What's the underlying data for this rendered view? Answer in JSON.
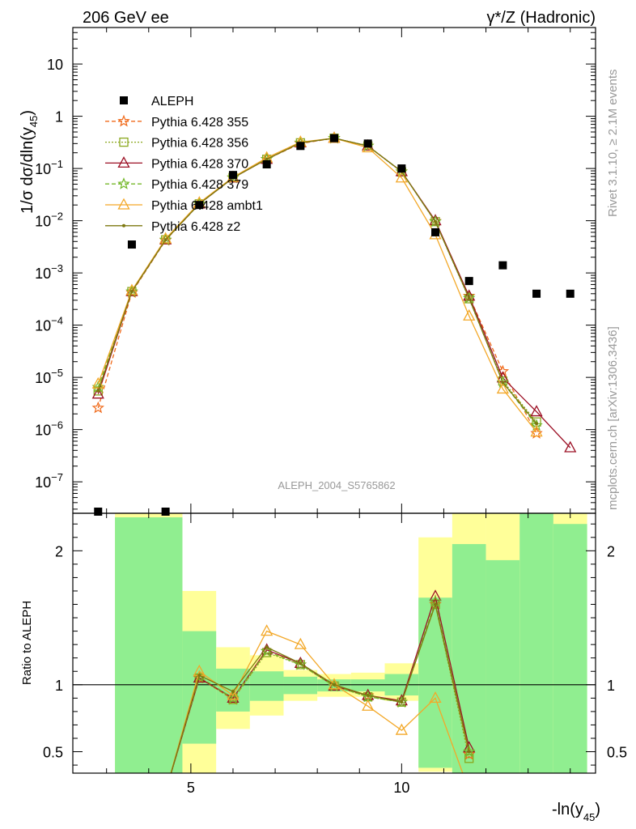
{
  "header": {
    "left_title": "206 GeV ee",
    "right_title": "γ*/Z (Hadronic)"
  },
  "side_labels": {
    "rivet": "Rivet 3.1.10, ≥ 2.1M events",
    "mcplots": "mcplots.cern.ch [arXiv:1306.3436]"
  },
  "watermark": "ALEPH_2004_S5765862",
  "colors": {
    "ALEPH": "#000000",
    "p355": "#f06a1a",
    "p356": "#8aa81e",
    "p370": "#9c1025",
    "p379": "#74b82a",
    "ambt1": "#f3a828",
    "z2": "#7d7810",
    "band_inner": "#90ee90",
    "band_outer": "#ffff99"
  },
  "chart_data": [
    {
      "type": "line",
      "panel": "main",
      "ylabel": "1/σ dσ/dln(y45)",
      "yscale": "log",
      "ylim": [
        2.5e-08,
        50
      ],
      "xlim": [
        2.2,
        14.6
      ],
      "y_ticks": [
        "10^-7",
        "10^-6",
        "10^-5",
        "10^-4",
        "10^-3",
        "10^-2",
        "10^-1",
        "1",
        "10"
      ],
      "legend_position": "top-left",
      "data_marker": {
        "name": "ALEPH",
        "x": [
          2.8,
          3.6,
          4.4,
          5.2,
          6.0,
          6.8,
          7.6,
          8.4,
          9.2,
          10.0,
          10.8,
          11.6,
          12.4,
          13.2,
          14.0
        ],
        "y": [
          2.5e-08,
          0.0035,
          2.5e-08,
          0.02,
          0.075,
          0.12,
          0.27,
          0.38,
          0.3,
          0.1,
          0.006,
          0.0007,
          0.0014,
          0.0004,
          0.0004
        ]
      },
      "x": [
        2.8,
        3.6,
        4.4,
        5.2,
        6.0,
        6.8,
        7.6,
        8.4,
        9.2,
        10.0,
        10.8,
        11.6,
        12.4,
        13.2,
        14.0
      ],
      "series": [
        {
          "name": "Pythia 6.428 355",
          "y": [
            2.6e-06,
            0.00042,
            0.0042,
            0.021,
            0.066,
            0.15,
            0.3,
            0.38,
            0.27,
            0.087,
            0.0098,
            0.00036,
            1.3e-05,
            8.5e-07,
            null
          ]
        },
        {
          "name": "Pythia 6.428 356",
          "y": [
            5.5e-06,
            0.00044,
            0.0043,
            0.021,
            0.067,
            0.15,
            0.31,
            0.38,
            0.27,
            0.086,
            0.0096,
            0.00032,
            8.5e-06,
            1.4e-06,
            null
          ]
        },
        {
          "name": "Pythia 6.428 370",
          "y": [
            4.8e-06,
            0.00044,
            0.0043,
            0.021,
            0.066,
            0.15,
            0.31,
            0.38,
            0.27,
            0.087,
            0.01,
            0.00036,
            9.8e-06,
            2.2e-06,
            4.5e-07
          ]
        },
        {
          "name": "Pythia 6.428 379",
          "y": [
            6.5e-06,
            0.00044,
            0.0043,
            0.021,
            0.067,
            0.15,
            0.31,
            0.38,
            0.27,
            0.087,
            0.0096,
            0.00033,
            8e-06,
            1.2e-06,
            null
          ]
        },
        {
          "name": "Pythia 6.428 ambt1",
          "y": [
            7.5e-06,
            0.00046,
            0.0045,
            0.022,
            0.068,
            0.16,
            0.32,
            0.38,
            0.25,
            0.066,
            0.0054,
            0.00015,
            6e-06,
            9e-07,
            null
          ]
        },
        {
          "name": "Pythia 6.428 z2",
          "y": [
            5.5e-06,
            0.00044,
            0.0043,
            0.021,
            0.066,
            0.15,
            0.31,
            0.38,
            0.27,
            0.087,
            0.0096,
            0.00033,
            8e-06,
            1.3e-06,
            null
          ]
        }
      ]
    },
    {
      "type": "line",
      "panel": "ratio",
      "ylabel": "Ratio to ALEPH",
      "xlabel": "-ln(y45)",
      "ylim": [
        0.34,
        2.28
      ],
      "xlim": [
        2.2,
        14.6
      ],
      "x_ticks": [
        5,
        10
      ],
      "y_ticks": [
        0.5,
        1,
        2
      ],
      "bins": [
        {
          "lo": 2.2,
          "hi": 3.2,
          "inner": [
            null,
            null
          ],
          "outer": [
            null,
            null
          ]
        },
        {
          "lo": 3.2,
          "hi": 4.8,
          "inner": [
            0.0,
            2.25
          ],
          "outer": [
            0.0,
            2.28
          ]
        },
        {
          "lo": 4.8,
          "hi": 5.6,
          "inner": [
            0.56,
            1.4
          ],
          "outer": [
            0.0,
            1.7
          ]
        },
        {
          "lo": 5.6,
          "hi": 6.4,
          "inner": [
            0.8,
            1.12
          ],
          "outer": [
            0.67,
            1.28
          ]
        },
        {
          "lo": 6.4,
          "hi": 7.2,
          "inner": [
            0.88,
            1.1
          ],
          "outer": [
            0.77,
            1.22
          ]
        },
        {
          "lo": 7.2,
          "hi": 8.0,
          "inner": [
            0.93,
            1.06
          ],
          "outer": [
            0.88,
            1.11
          ]
        },
        {
          "lo": 8.0,
          "hi": 8.8,
          "inner": [
            0.95,
            1.04
          ],
          "outer": [
            0.91,
            1.08
          ]
        },
        {
          "lo": 8.8,
          "hi": 9.6,
          "inner": [
            0.95,
            1.04
          ],
          "outer": [
            0.91,
            1.09
          ]
        },
        {
          "lo": 9.6,
          "hi": 10.4,
          "inner": [
            0.92,
            1.08
          ],
          "outer": [
            0.88,
            1.16
          ]
        },
        {
          "lo": 10.4,
          "hi": 11.2,
          "inner": [
            0.38,
            1.65
          ],
          "outer": [
            0.35,
            2.1
          ]
        },
        {
          "lo": 11.2,
          "hi": 12.0,
          "inner": [
            0.0,
            2.05
          ],
          "outer": [
            0.0,
            2.28
          ]
        },
        {
          "lo": 12.0,
          "hi": 12.8,
          "inner": [
            0.0,
            1.93
          ],
          "outer": [
            0.0,
            2.28
          ]
        },
        {
          "lo": 12.8,
          "hi": 13.6,
          "inner": [
            0.0,
            2.28
          ],
          "outer": [
            0.0,
            2.28
          ]
        },
        {
          "lo": 13.6,
          "hi": 14.4,
          "inner": [
            0.0,
            2.2
          ],
          "outer": [
            0.0,
            2.28
          ]
        },
        {
          "lo": 14.4,
          "hi": 14.6,
          "inner": [
            null,
            null
          ],
          "outer": [
            null,
            null
          ]
        }
      ],
      "x": [
        4.4,
        5.2,
        6.0,
        6.8,
        7.6,
        8.4,
        9.2,
        10.0,
        10.8,
        11.6
      ],
      "series": [
        {
          "name": "Pythia 6.428 355",
          "y": [
            0.2,
            1.05,
            0.89,
            1.25,
            1.15,
            0.99,
            0.92,
            0.87,
            1.6,
            0.48
          ]
        },
        {
          "name": "Pythia 6.428 356",
          "y": [
            0.2,
            1.05,
            0.89,
            1.24,
            1.15,
            0.99,
            0.91,
            0.87,
            1.6,
            0.45
          ]
        },
        {
          "name": "Pythia 6.428 370",
          "y": [
            0.2,
            1.05,
            0.9,
            1.26,
            1.16,
            0.99,
            0.92,
            0.88,
            1.66,
            0.53
          ]
        },
        {
          "name": "Pythia 6.428 379",
          "y": [
            0.2,
            1.06,
            0.9,
            1.25,
            1.15,
            0.99,
            0.91,
            0.87,
            1.62,
            0.5
          ]
        },
        {
          "name": "Pythia 6.428 ambt1",
          "y": [
            0.2,
            1.1,
            0.92,
            1.4,
            1.3,
            1.0,
            0.84,
            0.66,
            0.9,
            0.21
          ]
        },
        {
          "name": "Pythia 6.428 z2",
          "y": [
            0.2,
            1.07,
            0.95,
            1.28,
            1.16,
            1.0,
            0.92,
            0.87,
            1.6,
            0.5
          ]
        }
      ]
    }
  ]
}
